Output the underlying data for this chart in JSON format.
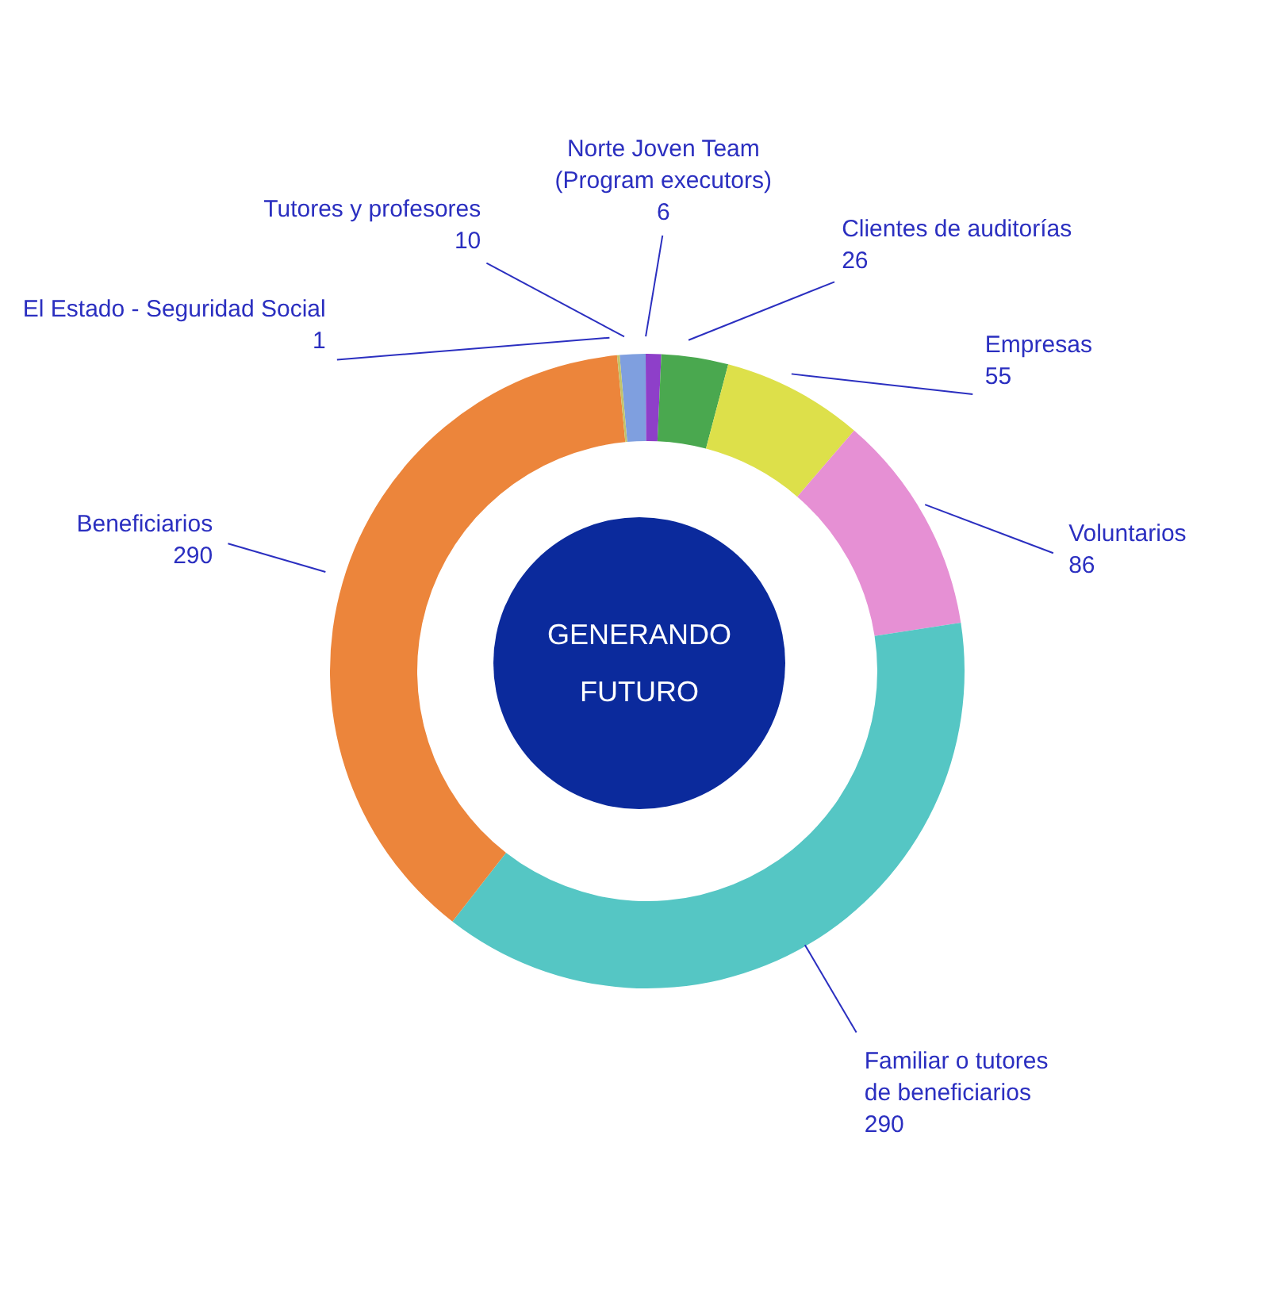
{
  "chart_data": {
    "type": "donut",
    "title": "GENERANDO FUTURO",
    "categories": [
      "Tutores y profesores",
      "Norte Joven Team\n(Program executors)",
      "Clientes de auditorías",
      "Empresas",
      "Voluntarios",
      "Familiar o tutores\nde beneficiarios",
      "Beneficiarios",
      "El Estado - Seguridad Social"
    ],
    "values": [
      10,
      6,
      26,
      55,
      86,
      290,
      290,
      1
    ],
    "colors": [
      "#7f9fdf",
      "#8e3fc9",
      "#4aa84f",
      "#dde04a",
      "#e690d4",
      "#55c6c4",
      "#ec853b",
      "#c2c36a"
    ],
    "data_labels": true,
    "legend": false
  }
}
